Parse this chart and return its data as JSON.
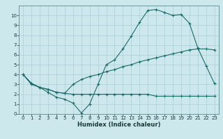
{
  "xlabel": "Humidex (Indice chaleur)",
  "ylabel": "",
  "bg_color": "#cde8ec",
  "grid_color": "#aacdd4",
  "line_color": "#1a6b6b",
  "xlim": [
    -0.5,
    23.5
  ],
  "ylim": [
    0,
    11
  ],
  "xticks": [
    0,
    1,
    2,
    3,
    4,
    5,
    6,
    7,
    8,
    9,
    10,
    11,
    12,
    13,
    14,
    15,
    16,
    17,
    18,
    19,
    20,
    21,
    22,
    23
  ],
  "yticks": [
    0,
    1,
    2,
    3,
    4,
    5,
    6,
    7,
    8,
    9,
    10
  ],
  "line1_x": [
    0,
    1,
    2,
    3,
    4,
    5,
    6,
    7,
    8,
    9,
    10,
    11,
    12,
    13,
    14,
    15,
    16,
    17,
    18,
    19,
    20,
    21,
    22,
    23
  ],
  "line1_y": [
    4.0,
    3.0,
    2.7,
    2.2,
    1.7,
    1.5,
    1.1,
    0.1,
    1.0,
    3.0,
    5.0,
    5.5,
    6.6,
    7.9,
    9.3,
    10.5,
    10.6,
    10.3,
    10.0,
    10.1,
    9.2,
    6.7,
    4.9,
    3.1
  ],
  "line2_x": [
    0,
    1,
    2,
    3,
    4,
    5,
    6,
    7,
    8,
    9,
    10,
    11,
    12,
    13,
    14,
    15,
    16,
    17,
    18,
    19,
    20,
    21,
    22,
    23
  ],
  "line2_y": [
    4.0,
    3.1,
    2.7,
    2.5,
    2.2,
    2.1,
    3.0,
    3.5,
    3.8,
    4.0,
    4.3,
    4.5,
    4.8,
    5.0,
    5.3,
    5.5,
    5.7,
    5.9,
    6.1,
    6.3,
    6.5,
    6.6,
    6.6,
    6.5
  ],
  "line3_x": [
    0,
    1,
    2,
    3,
    4,
    5,
    6,
    7,
    8,
    9,
    10,
    11,
    12,
    13,
    14,
    15,
    16,
    17,
    18,
    19,
    20,
    21,
    22,
    23
  ],
  "line3_y": [
    4.0,
    3.1,
    2.7,
    2.5,
    2.2,
    2.1,
    2.0,
    2.0,
    2.0,
    2.0,
    2.0,
    2.0,
    2.0,
    2.0,
    2.0,
    2.0,
    1.8,
    1.8,
    1.8,
    1.8,
    1.8,
    1.8,
    1.8,
    1.8
  ],
  "tick_fontsize": 5.0,
  "xlabel_fontsize": 6.0
}
